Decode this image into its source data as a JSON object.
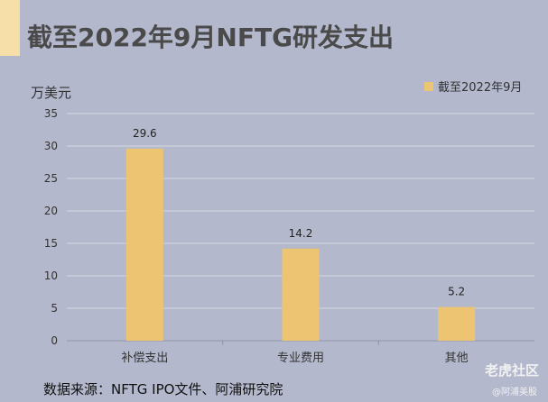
{
  "title": "截至2022年9月NFTG研发支出",
  "unit_label": "万美元",
  "source_text": "数据来源：NFTG IPO文件、阿浦研究院",
  "watermark": {
    "brand": "老虎社区",
    "handle": "@阿浦美股"
  },
  "colors": {
    "background": "#b3b8cc",
    "bar": "#ecc472",
    "accent": "#f6dfa8"
  },
  "chart_data": {
    "type": "bar",
    "title": "截至2022年9月NFTG研发支出",
    "ylabel": "万美元",
    "xlabel": "",
    "categories": [
      "补偿支出",
      "专业费用",
      "其他"
    ],
    "series": [
      {
        "name": "截至2022年9月",
        "values": [
          29.6,
          14.2,
          5.2
        ]
      }
    ],
    "value_labels": [
      "29.6",
      "14.2",
      "5.2"
    ],
    "ylim": [
      0,
      35
    ],
    "yticks": [
      0,
      5,
      10,
      15,
      20,
      25,
      30,
      35
    ],
    "grid": true,
    "legend": "top-right"
  }
}
